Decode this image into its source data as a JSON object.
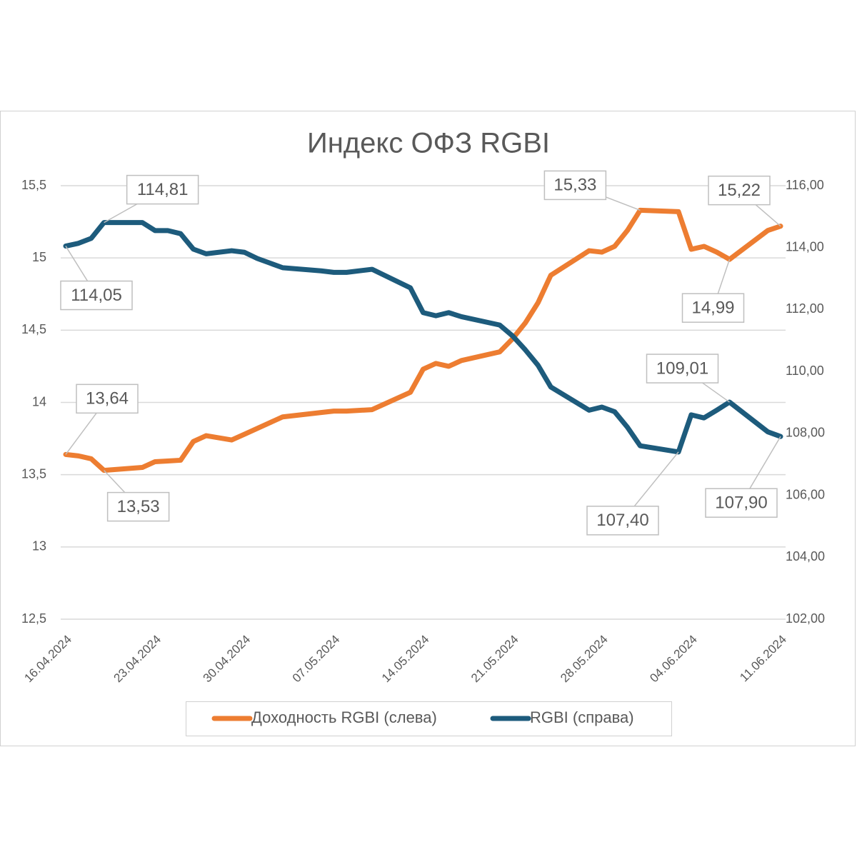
{
  "chart_data": {
    "type": "line",
    "title": "Индекс ОФЗ RGBI",
    "x": [
      "16.04.2024",
      "17.04.2024",
      "18.04.2024",
      "19.04.2024",
      "22.04.2024",
      "23.04.2024",
      "24.04.2024",
      "25.04.2024",
      "26.04.2024",
      "27.04.2024",
      "29.04.2024",
      "30.04.2024",
      "01.05.2024",
      "02.05.2024",
      "03.05.2024",
      "06.05.2024",
      "07.05.2024",
      "08.05.2024",
      "10.05.2024",
      "13.05.2024",
      "14.05.2024",
      "15.05.2024",
      "16.05.2024",
      "17.05.2024",
      "20.05.2024",
      "21.05.2024",
      "22.05.2024",
      "23.05.2024",
      "24.05.2024",
      "27.05.2024",
      "28.05.2024",
      "29.05.2024",
      "30.05.2024",
      "31.05.2024",
      "03.06.2024",
      "04.06.2024",
      "05.06.2024",
      "06.06.2024",
      "07.06.2024",
      "10.06.2024",
      "11.06.2024"
    ],
    "series": [
      {
        "name": "Доходность RGBI (слева)",
        "color": "#ed7d31",
        "values": [
          13.64,
          13.63,
          13.61,
          13.53,
          13.55,
          13.59,
          13.595,
          13.6,
          13.73,
          13.77,
          13.74,
          13.78,
          13.82,
          13.86,
          13.9,
          13.93,
          13.94,
          13.94,
          13.95,
          14.07,
          14.23,
          14.27,
          14.25,
          14.29,
          14.35,
          14.44,
          14.55,
          14.69,
          14.88,
          15.05,
          15.04,
          15.08,
          15.19,
          15.33,
          15.32,
          15.06,
          15.08,
          15.04,
          14.99,
          15.19,
          15.22
        ],
        "value_labels": [
          "13,64",
          null,
          null,
          "13,53",
          null,
          null,
          null,
          null,
          null,
          null,
          null,
          null,
          null,
          null,
          null,
          null,
          null,
          null,
          null,
          null,
          null,
          null,
          null,
          null,
          null,
          null,
          null,
          null,
          null,
          null,
          null,
          null,
          null,
          "15,33",
          null,
          null,
          null,
          null,
          "14,99",
          null,
          "15,22"
        ]
      },
      {
        "name": "RGBI (справа)",
        "color": "#1d5b7c",
        "axis": "y2",
        "values": [
          114.05,
          114.14,
          114.3,
          114.81,
          114.81,
          114.55,
          114.55,
          114.45,
          113.95,
          113.8,
          113.9,
          113.85,
          113.65,
          113.5,
          113.35,
          113.25,
          113.2,
          113.2,
          113.3,
          112.7,
          111.9,
          111.8,
          111.9,
          111.77,
          111.5,
          111.15,
          110.7,
          110.2,
          109.5,
          108.75,
          108.85,
          108.7,
          108.2,
          107.6,
          107.4,
          108.6,
          108.5,
          108.75,
          109.01,
          108.05,
          107.9
        ],
        "value_labels": [
          "114,05",
          null,
          null,
          "114,81",
          null,
          null,
          null,
          null,
          null,
          null,
          null,
          null,
          null,
          null,
          null,
          null,
          null,
          null,
          null,
          null,
          null,
          null,
          null,
          null,
          null,
          null,
          null,
          null,
          null,
          null,
          null,
          null,
          null,
          null,
          "107,40",
          null,
          null,
          null,
          "109,01",
          null,
          "107,90"
        ]
      }
    ],
    "xlim": [
      "16.04.2024",
      "11.06.2024"
    ],
    "xticks": [
      "16.04.2024",
      "23.04.2024",
      "30.04.2024",
      "07.05.2024",
      "14.05.2024",
      "21.05.2024",
      "28.05.2024",
      "04.06.2024",
      "11.06.2024"
    ],
    "ylim": [
      12.5,
      15.5
    ],
    "yticks": [
      {
        "value": 12.5,
        "label": "12,5"
      },
      13,
      {
        "value": 13.5,
        "label": "13,5"
      },
      14,
      {
        "value": 14.5,
        "label": "14,5"
      },
      15,
      {
        "value": 15.5,
        "label": "15,5"
      }
    ],
    "y2lim": [
      102,
      116
    ],
    "y2ticks": [
      {
        "value": 102,
        "label": "102,00"
      },
      {
        "value": 104,
        "label": "104,00"
      },
      {
        "value": 106,
        "label": "106,00"
      },
      {
        "value": 108,
        "label": "108,00"
      },
      {
        "value": 110,
        "label": "110,00"
      },
      {
        "value": 112,
        "label": "112,00"
      },
      {
        "value": 114,
        "label": "114,00"
      },
      {
        "value": 116,
        "label": "116,00"
      }
    ],
    "grid": true,
    "legend": "bottom"
  }
}
